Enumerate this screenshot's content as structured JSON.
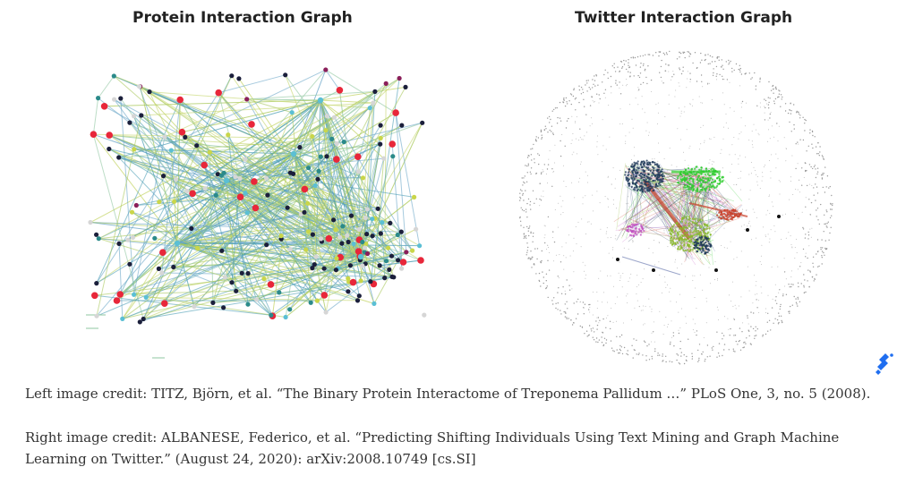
{
  "left_figure": {
    "title": "Protein Interaction Graph",
    "node_colors": [
      "#1b1f3b",
      "#e8273a",
      "#d6d6d6",
      "#c9d64a",
      "#2b8a8a",
      "#8a1f5a",
      "#5bbfd4"
    ],
    "edge_colors": [
      "#6aa6c8",
      "#8fc7a0",
      "#c5d66a",
      "#4c9fb5",
      "#a8c85a"
    ]
  },
  "right_figure": {
    "title": "Twitter Interaction Graph",
    "cluster_colors": [
      "#1f3a5a",
      "#2ecc2e",
      "#8ab82a",
      "#c8402a",
      "#c050c0",
      "#5a6aa8"
    ]
  },
  "credits": {
    "left": "Left image credit: TITZ, Björn, et al. “The Binary Protein Interactome of Treponema Pallidum …” PLoS One, 3, no. 5 (2008).",
    "right": "Right image credit: ALBANESE, Federico, et al. “Predicting Shifting Individuals Using Text Mining and Graph Machine Learning on Twitter.” (August 24, 2020): arXiv:2008.10749 [cs.SI]"
  },
  "logo": {
    "icon": "toptal-logo-icon",
    "color": "#1f6ef0"
  }
}
